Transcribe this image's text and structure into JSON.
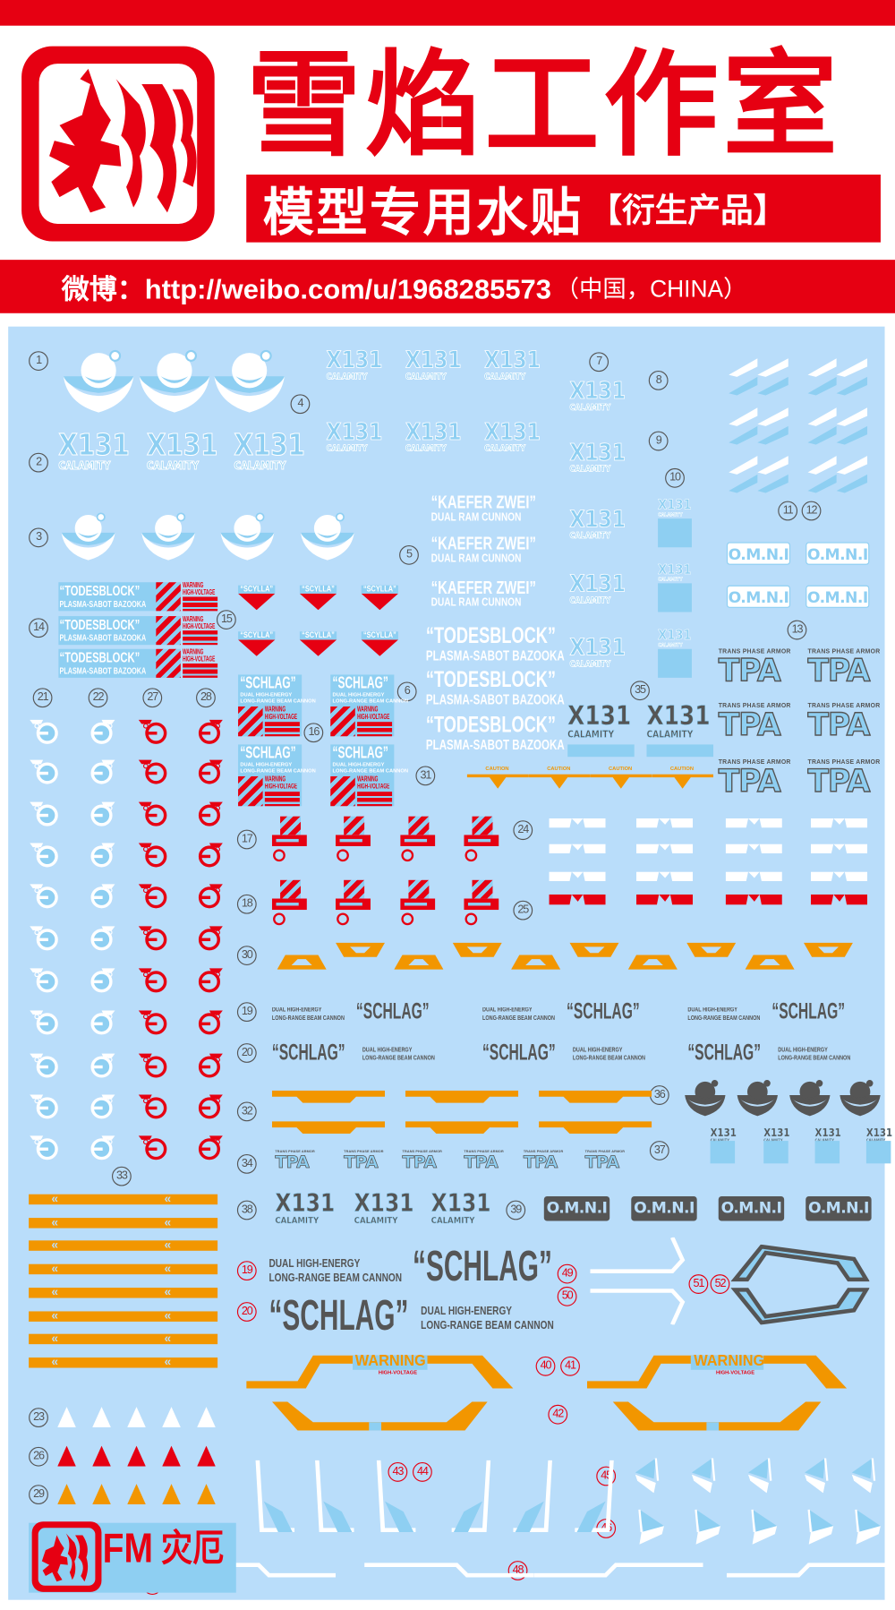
{
  "header": {
    "title": "雪焰工作室",
    "subtitle": "模型专用水贴",
    "subtitle_tag": "【衍生产品】",
    "weibo_label": "微博：http://weibo.com/u/1968285573",
    "weibo_country": "（中国，CHINA）"
  },
  "decals": {
    "x131": "X131",
    "calamity": "CALAMITY",
    "kaefer": "“KAEFER ZWEI”",
    "ram": "DUAL RAM CUNNON",
    "todesblock": "“TODESBLOCK”",
    "bazooka": "PLASMA-SABOT BAZOOKA",
    "warning": "WARNING",
    "high_voltage": "HIGH-VOLTAGE",
    "scylla": "“SCYLLA”",
    "schlag": "“SCHLAG”",
    "dual_high_energy": "DUAL HIGH-ENERGY",
    "beam_cannon": "LONG-RANGE BEAM CANNON",
    "omni": "O.M.N.I",
    "tpa": "TPA",
    "trans_phase": "TRANS PHASE ARMOR",
    "caution": "CAUTION",
    "fm": "FM",
    "fm_cn": "灾厄"
  },
  "markers": [
    {
      "n": "1",
      "color": "gray"
    },
    {
      "n": "2",
      "color": "gray"
    },
    {
      "n": "3",
      "color": "gray"
    },
    {
      "n": "4",
      "color": "gray"
    },
    {
      "n": "5",
      "color": "gray"
    },
    {
      "n": "6",
      "color": "gray"
    },
    {
      "n": "7",
      "color": "gray"
    },
    {
      "n": "8",
      "color": "gray"
    },
    {
      "n": "9",
      "color": "gray"
    },
    {
      "n": "10",
      "color": "gray"
    },
    {
      "n": "11",
      "color": "gray"
    },
    {
      "n": "12",
      "color": "gray"
    },
    {
      "n": "13",
      "color": "gray"
    },
    {
      "n": "14",
      "color": "gray"
    },
    {
      "n": "15",
      "color": "gray"
    },
    {
      "n": "16",
      "color": "gray"
    },
    {
      "n": "21",
      "color": "gray"
    },
    {
      "n": "22",
      "color": "gray"
    },
    {
      "n": "27",
      "color": "gray"
    },
    {
      "n": "28",
      "color": "gray"
    },
    {
      "n": "35",
      "color": "gray"
    },
    {
      "n": "31",
      "color": "gray"
    },
    {
      "n": "17",
      "color": "gray"
    },
    {
      "n": "24",
      "color": "gray"
    },
    {
      "n": "18",
      "color": "gray"
    },
    {
      "n": "25",
      "color": "gray"
    },
    {
      "n": "30",
      "color": "gray"
    },
    {
      "n": "19",
      "color": "gray"
    },
    {
      "n": "20",
      "color": "gray"
    },
    {
      "n": "32",
      "color": "gray"
    },
    {
      "n": "36",
      "color": "gray"
    },
    {
      "n": "37",
      "color": "gray"
    },
    {
      "n": "34",
      "color": "gray"
    },
    {
      "n": "33",
      "color": "gray"
    },
    {
      "n": "38",
      "color": "gray"
    },
    {
      "n": "39",
      "color": "gray"
    },
    {
      "n": "19",
      "color": "red"
    },
    {
      "n": "20",
      "color": "red"
    },
    {
      "n": "49",
      "color": "red"
    },
    {
      "n": "50",
      "color": "red"
    },
    {
      "n": "51",
      "color": "red"
    },
    {
      "n": "52",
      "color": "red"
    },
    {
      "n": "40",
      "color": "red"
    },
    {
      "n": "41",
      "color": "red"
    },
    {
      "n": "42",
      "color": "red"
    },
    {
      "n": "23",
      "color": "gray"
    },
    {
      "n": "26",
      "color": "gray"
    },
    {
      "n": "43",
      "color": "red"
    },
    {
      "n": "44",
      "color": "red"
    },
    {
      "n": "45",
      "color": "red"
    },
    {
      "n": "29",
      "color": "gray"
    },
    {
      "n": "46",
      "color": "red"
    },
    {
      "n": "47",
      "color": "red"
    },
    {
      "n": "48",
      "color": "red"
    }
  ],
  "colors": {
    "brand_red": "#e60012",
    "sheet_blue": "#b9ddfa",
    "decal_blue": "#8ecff2",
    "decal_gray": "#555555",
    "decal_orange": "#f29600",
    "decal_white": "#ffffff"
  }
}
